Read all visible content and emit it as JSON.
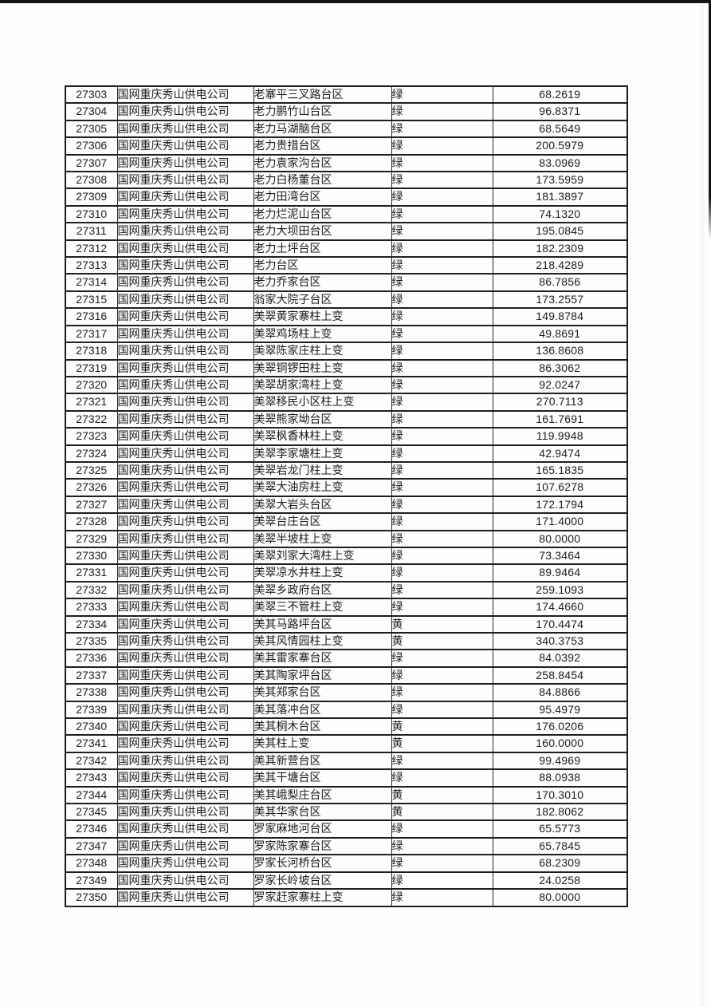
{
  "table": {
    "rows": [
      [
        "27303",
        "国网重庆秀山供电公司",
        "老寨平三叉路台区",
        "绿",
        "68.2619"
      ],
      [
        "27304",
        "国网重庆秀山供电公司",
        "老力鹏竹山台区",
        "绿",
        "96.8371"
      ],
      [
        "27305",
        "国网重庆秀山供电公司",
        "老力马湖脑台区",
        "绿",
        "68.5649"
      ],
      [
        "27306",
        "国网重庆秀山供电公司",
        "老力贵措台区",
        "绿",
        "200.5979"
      ],
      [
        "27307",
        "国网重庆秀山供电公司",
        "老力袁家沟台区",
        "绿",
        "83.0969"
      ],
      [
        "27308",
        "国网重庆秀山供电公司",
        "老力白杨董台区",
        "绿",
        "173.5959"
      ],
      [
        "27309",
        "国网重庆秀山供电公司",
        "老力田湾台区",
        "绿",
        "181.3897"
      ],
      [
        "27310",
        "国网重庆秀山供电公司",
        "老力烂泥山台区",
        "绿",
        "74.1320"
      ],
      [
        "27311",
        "国网重庆秀山供电公司",
        "老力大坝田台区",
        "绿",
        "195.0845"
      ],
      [
        "27312",
        "国网重庆秀山供电公司",
        "老力土坪台区",
        "绿",
        "182.2309"
      ],
      [
        "27313",
        "国网重庆秀山供电公司",
        "老力台区",
        "绿",
        "218.4289"
      ],
      [
        "27314",
        "国网重庆秀山供电公司",
        "老力乔家台区",
        "绿",
        "86.7856"
      ],
      [
        "27315",
        "国网重庆秀山供电公司",
        "翁家大院子台区",
        "绿",
        "173.2557"
      ],
      [
        "27316",
        "国网重庆秀山供电公司",
        "美翠黄家寨柱上变",
        "绿",
        "149.8784"
      ],
      [
        "27317",
        "国网重庆秀山供电公司",
        "美翠鸡场柱上变",
        "绿",
        "49.8691"
      ],
      [
        "27318",
        "国网重庆秀山供电公司",
        "美翠陈家庄柱上变",
        "绿",
        "136.8608"
      ],
      [
        "27319",
        "国网重庆秀山供电公司",
        "美翠铜锣田柱上变",
        "绿",
        "86.3062"
      ],
      [
        "27320",
        "国网重庆秀山供电公司",
        "美翠胡家湾柱上变",
        "绿",
        "92.0247"
      ],
      [
        "27321",
        "国网重庆秀山供电公司",
        "美翠移民小区柱上变",
        "绿",
        "270.7113"
      ],
      [
        "27322",
        "国网重庆秀山供电公司",
        "美翠熊家坳台区",
        "绿",
        "161.7691"
      ],
      [
        "27323",
        "国网重庆秀山供电公司",
        "美翠枫香林柱上变",
        "绿",
        "119.9948"
      ],
      [
        "27324",
        "国网重庆秀山供电公司",
        "美翠李家塘柱上变",
        "绿",
        "42.9474"
      ],
      [
        "27325",
        "国网重庆秀山供电公司",
        "美翠岩龙门柱上变",
        "绿",
        "165.1835"
      ],
      [
        "27326",
        "国网重庆秀山供电公司",
        "美翠大油房柱上变",
        "绿",
        "107.6278"
      ],
      [
        "27327",
        "国网重庆秀山供电公司",
        "美翠大岩头台区",
        "绿",
        "172.1794"
      ],
      [
        "27328",
        "国网重庆秀山供电公司",
        "美翠台庄台区",
        "绿",
        "171.4000"
      ],
      [
        "27329",
        "国网重庆秀山供电公司",
        "美翠半坡柱上变",
        "绿",
        "80.0000"
      ],
      [
        "27330",
        "国网重庆秀山供电公司",
        "美翠刘家大湾柱上变",
        "绿",
        "73.3464"
      ],
      [
        "27331",
        "国网重庆秀山供电公司",
        "美翠凉水井柱上变",
        "绿",
        "89.9464"
      ],
      [
        "27332",
        "国网重庆秀山供电公司",
        "美翠乡政府台区",
        "绿",
        "259.1093"
      ],
      [
        "27333",
        "国网重庆秀山供电公司",
        "美翠三不管柱上变",
        "绿",
        "174.4660"
      ],
      [
        "27334",
        "国网重庆秀山供电公司",
        "美其马路坪台区",
        "黄",
        "170.4474"
      ],
      [
        "27335",
        "国网重庆秀山供电公司",
        "美其风情园柱上变",
        "黄",
        "340.3753"
      ],
      [
        "27336",
        "国网重庆秀山供电公司",
        "美其雷家寨台区",
        "绿",
        "84.0392"
      ],
      [
        "27337",
        "国网重庆秀山供电公司",
        "美其陶家坪台区",
        "绿",
        "258.8454"
      ],
      [
        "27338",
        "国网重庆秀山供电公司",
        "美其郑家台区",
        "绿",
        "84.8866"
      ],
      [
        "27339",
        "国网重庆秀山供电公司",
        "美其落冲台区",
        "绿",
        "95.4979"
      ],
      [
        "27340",
        "国网重庆秀山供电公司",
        "美其桐木台区",
        "黄",
        "176.0206"
      ],
      [
        "27341",
        "国网重庆秀山供电公司",
        "美其柱上变",
        "黄",
        "160.0000"
      ],
      [
        "27342",
        "国网重庆秀山供电公司",
        "美其新营台区",
        "绿",
        "99.4969"
      ],
      [
        "27343",
        "国网重庆秀山供电公司",
        "美其干塘台区",
        "绿",
        "88.0938"
      ],
      [
        "27344",
        "国网重庆秀山供电公司",
        "美其峨梨庄台区",
        "黄",
        "170.3010"
      ],
      [
        "27345",
        "国网重庆秀山供电公司",
        "美其华家台区",
        "黄",
        "182.8062"
      ],
      [
        "27346",
        "国网重庆秀山供电公司",
        "罗家麻地河台区",
        "绿",
        "65.5773"
      ],
      [
        "27347",
        "国网重庆秀山供电公司",
        "罗家陈家寨台区",
        "绿",
        "65.7845"
      ],
      [
        "27348",
        "国网重庆秀山供电公司",
        "罗家长河桥台区",
        "绿",
        "68.2309"
      ],
      [
        "27349",
        "国网重庆秀山供电公司",
        "罗家长岭坡台区",
        "绿",
        "24.0258"
      ],
      [
        "27350",
        "国网重庆秀山供电公司",
        "罗家赶家寨柱上变",
        "绿",
        "80.0000"
      ]
    ]
  }
}
